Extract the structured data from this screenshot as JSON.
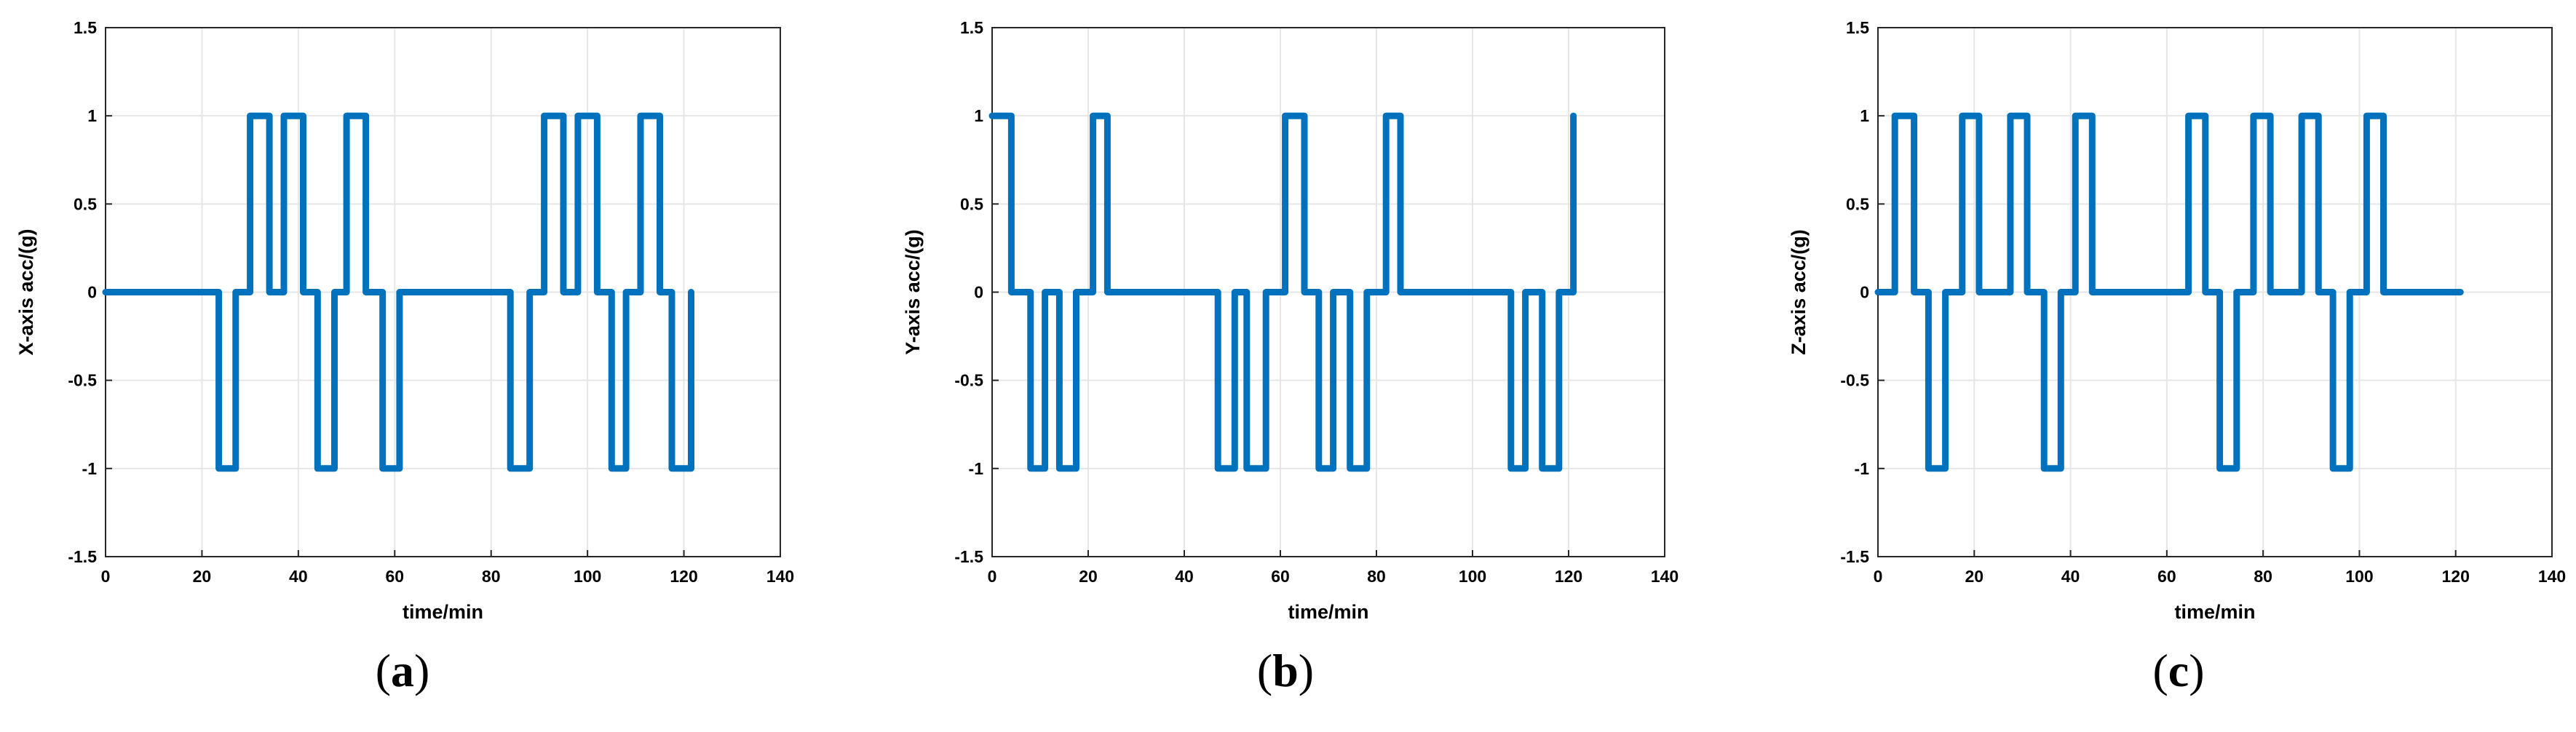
{
  "chart_data": [
    {
      "type": "line",
      "caption": "a",
      "xlabel": "time/min",
      "ylabel": "X-axis acc/(g)",
      "xlim": [
        0,
        140
      ],
      "ylim": [
        -1.5,
        1.5
      ],
      "xticks": [
        0,
        20,
        40,
        60,
        80,
        100,
        120,
        140
      ],
      "yticks": [
        -1.5,
        -1,
        -0.5,
        0,
        0.5,
        1,
        1.5
      ],
      "grid": true,
      "color": "#0072BD",
      "series": [
        {
          "x": [
            0,
            23.5,
            23.5,
            27,
            27,
            30,
            30,
            34,
            34,
            37,
            37,
            41,
            41,
            44,
            44,
            47.5,
            47.5,
            50,
            50,
            54,
            54,
            57.5,
            57.5,
            61,
            61,
            84,
            84,
            88,
            88,
            91,
            91,
            95,
            95,
            98,
            98,
            102,
            102,
            105,
            105,
            108,
            108,
            111,
            111,
            115,
            115,
            117.5,
            117.5,
            121.5,
            121.5
          ],
          "y": [
            0,
            0,
            -1,
            -1,
            0,
            0,
            1,
            1,
            0,
            0,
            1,
            1,
            0,
            0,
            -1,
            -1,
            0,
            0,
            1,
            1,
            0,
            0,
            -1,
            -1,
            0,
            0,
            -1,
            -1,
            0,
            0,
            1,
            1,
            0,
            0,
            1,
            1,
            0,
            0,
            -1,
            -1,
            0,
            0,
            1,
            1,
            0,
            0,
            -1,
            -1,
            0
          ]
        }
      ]
    },
    {
      "type": "line",
      "caption": "b",
      "xlabel": "time/min",
      "ylabel": "Y-axis acc/(g)",
      "xlim": [
        0,
        140
      ],
      "ylim": [
        -1.5,
        1.5
      ],
      "xticks": [
        0,
        20,
        40,
        60,
        80,
        100,
        120,
        140
      ],
      "yticks": [
        -1.5,
        -1,
        -0.5,
        0,
        0.5,
        1,
        1.5
      ],
      "grid": true,
      "color": "#0072BD",
      "series": [
        {
          "x": [
            0,
            4,
            4,
            8,
            8,
            11,
            11,
            14,
            14,
            17.5,
            17.5,
            21,
            21,
            24,
            24,
            47,
            47,
            50.5,
            50.5,
            53,
            53,
            57,
            57,
            61,
            61,
            65,
            65,
            68,
            68,
            71,
            71,
            74.5,
            74.5,
            78,
            78,
            82,
            82,
            85,
            85,
            108,
            108,
            111,
            111,
            114.5,
            114.5,
            118,
            118,
            121,
            121
          ],
          "y": [
            1,
            1,
            0,
            0,
            -1,
            -1,
            0,
            0,
            -1,
            -1,
            0,
            0,
            1,
            1,
            0,
            0,
            -1,
            -1,
            0,
            0,
            -1,
            -1,
            0,
            0,
            1,
            1,
            0,
            0,
            -1,
            -1,
            0,
            0,
            -1,
            -1,
            0,
            0,
            1,
            1,
            0,
            0,
            -1,
            -1,
            0,
            0,
            -1,
            -1,
            0,
            0,
            1
          ]
        }
      ]
    },
    {
      "type": "line",
      "caption": "c",
      "xlabel": "time/min",
      "ylabel": "Z-axis acc/(g)",
      "xlim": [
        0,
        140
      ],
      "ylim": [
        -1.5,
        1.5
      ],
      "xticks": [
        0,
        20,
        40,
        60,
        80,
        100,
        120,
        140
      ],
      "yticks": [
        -1.5,
        -1,
        -0.5,
        0,
        0.5,
        1,
        1.5
      ],
      "grid": true,
      "color": "#0072BD",
      "series": [
        {
          "x": [
            0,
            3.5,
            3.5,
            7.5,
            7.5,
            10.5,
            10.5,
            14,
            14,
            17.5,
            17.5,
            21,
            21,
            27.5,
            27.5,
            31,
            31,
            34.5,
            34.5,
            38,
            38,
            41,
            41,
            44.5,
            44.5,
            64.5,
            64.5,
            68,
            68,
            71,
            71,
            74.5,
            74.5,
            78,
            78,
            81.5,
            81.5,
            88,
            88,
            91.5,
            91.5,
            94.5,
            94.5,
            98,
            98,
            101.5,
            101.5,
            105,
            105,
            121
          ],
          "y": [
            0,
            0,
            1,
            1,
            0,
            0,
            -1,
            -1,
            0,
            0,
            1,
            1,
            0,
            0,
            1,
            1,
            0,
            0,
            -1,
            -1,
            0,
            0,
            1,
            1,
            0,
            0,
            1,
            1,
            0,
            0,
            -1,
            -1,
            0,
            0,
            1,
            1,
            0,
            0,
            1,
            1,
            0,
            0,
            -1,
            -1,
            0,
            0,
            1,
            1,
            0,
            0
          ]
        }
      ]
    }
  ]
}
